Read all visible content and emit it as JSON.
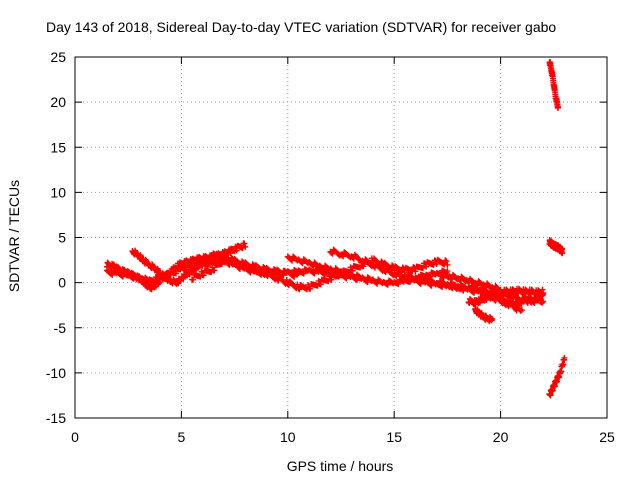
{
  "chart_data": {
    "type": "scatter",
    "title": "Day 143 of 2018, Sidereal Day-to-day VTEC variation (SDTVAR) for receiver gabo",
    "xlabel": "GPS time / hours",
    "ylabel": "SDTVAR / TECUs",
    "xlim": [
      0,
      25
    ],
    "ylim": [
      -15,
      25
    ],
    "xticks": [
      "0",
      "5",
      "10",
      "15",
      "20",
      "25"
    ],
    "yticks": [
      "-15",
      "-10",
      "-5",
      "0",
      "5",
      "10",
      "15",
      "20",
      "25"
    ],
    "grid": true,
    "marker": "+",
    "color": "#ff0000",
    "series": [
      {
        "x": [
          1.5,
          1.8,
          2.0,
          2.3,
          2.5,
          2.7,
          3.0,
          3.2,
          3.4,
          3.6,
          3.8,
          4.0,
          4.3,
          4.6,
          4.9,
          5.2,
          5.5,
          5.8,
          6.1,
          6.4,
          6.7,
          7.0,
          7.3,
          7.6,
          8.0
        ],
        "y": [
          2.0,
          1.8,
          1.5,
          1.2,
          1.0,
          0.8,
          0.5,
          0.2,
          -0.3,
          -0.5,
          -0.2,
          0.3,
          0.8,
          1.4,
          2.0,
          2.2,
          2.4,
          2.6,
          2.7,
          2.8,
          3.0,
          3.2,
          3.5,
          3.8,
          4.2
        ]
      },
      {
        "x": [
          1.5,
          2.0,
          2.5,
          3.0,
          3.5,
          4.0,
          4.5,
          5.0,
          5.5,
          6.0,
          6.5,
          7.0,
          7.5,
          8.0,
          8.5,
          9.0,
          9.5,
          10.0,
          10.5,
          11.0,
          11.5,
          12.0,
          12.5,
          13.0,
          13.5,
          14.0
        ],
        "y": [
          1.2,
          1.0,
          0.8,
          0.5,
          0.2,
          0.5,
          1.0,
          1.5,
          1.8,
          2.0,
          2.2,
          2.4,
          2.0,
          1.5,
          1.2,
          1.0,
          1.0,
          1.1,
          1.2,
          1.3,
          1.2,
          1.0,
          0.8,
          0.6,
          0.4,
          0.2
        ]
      },
      {
        "x": [
          2.7,
          3.0,
          3.2,
          3.5,
          3.8,
          4.0,
          4.3,
          4.5,
          4.8,
          5.0,
          5.3,
          5.6,
          5.9,
          6.2
        ],
        "y": [
          3.5,
          3.0,
          2.5,
          2.0,
          1.5,
          1.0,
          0.5,
          0.2,
          0.0,
          0.5,
          1.0,
          1.5,
          2.0,
          2.3
        ]
      },
      {
        "x": [
          5.5,
          6.0,
          6.5,
          7.0,
          7.5,
          8.0,
          8.5,
          9.0,
          9.5,
          10.0,
          10.5,
          11.0,
          11.5,
          12.0,
          12.5,
          13.0,
          13.5,
          14.0
        ],
        "y": [
          0.5,
          1.0,
          1.5,
          2.5,
          2.2,
          1.8,
          1.4,
          1.0,
          0.5,
          0.0,
          -0.5,
          -0.5,
          0.0,
          0.5,
          1.0,
          1.5,
          2.0,
          2.5
        ]
      },
      {
        "x": [
          6.5,
          7.0,
          7.5,
          8.0,
          8.5,
          9.0,
          9.5,
          10.0,
          10.5
        ],
        "y": [
          3.0,
          2.8,
          2.4,
          2.0,
          1.7,
          1.4,
          1.2,
          1.0,
          0.8
        ]
      },
      {
        "x": [
          10.0,
          10.5,
          11.0,
          11.5,
          12.0,
          12.5,
          13.0,
          13.5,
          14.0,
          14.5,
          15.0,
          15.5,
          16.0,
          16.5,
          17.0,
          17.5
        ],
        "y": [
          2.8,
          2.5,
          2.2,
          1.8,
          1.5,
          1.2,
          0.8,
          0.5,
          0.2,
          0.0,
          0.0,
          0.2,
          0.5,
          0.8,
          1.0,
          1.2
        ]
      },
      {
        "x": [
          12.0,
          12.5,
          13.0,
          13.5,
          14.0,
          14.5,
          15.0,
          15.5,
          16.0,
          16.5,
          17.0,
          17.5,
          18.0,
          18.5,
          19.0,
          19.5,
          20.0,
          20.5,
          21.0,
          21.5,
          22.0
        ],
        "y": [
          3.5,
          3.2,
          3.0,
          2.5,
          2.0,
          1.5,
          1.0,
          0.8,
          0.5,
          0.3,
          0.0,
          -0.2,
          -0.5,
          -0.5,
          -0.7,
          -1.0,
          -1.2,
          -1.5,
          -1.8,
          -2.0,
          -2.0
        ]
      },
      {
        "x": [
          14.0,
          14.5,
          15.0,
          15.5,
          16.0,
          16.5,
          17.0,
          17.5
        ],
        "y": [
          2.5,
          2.0,
          1.6,
          1.4,
          1.5,
          2.0,
          2.3,
          2.2
        ]
      },
      {
        "x": [
          15.5,
          16.0,
          16.5,
          17.0,
          17.5,
          18.0,
          18.5,
          19.0,
          19.5,
          20.0,
          20.5,
          21.0
        ],
        "y": [
          0.5,
          0.2,
          0.0,
          -0.2,
          -0.3,
          -0.5,
          -0.8,
          -1.0,
          -1.5,
          -2.0,
          -2.5,
          -3.2
        ]
      },
      {
        "x": [
          17.2,
          17.6,
          18.0,
          18.4,
          18.8,
          19.2,
          19.6,
          20.0
        ],
        "y": [
          0.8,
          0.7,
          0.5,
          0.3,
          0.0,
          -0.2,
          -0.5,
          -0.8
        ]
      },
      {
        "x": [
          18.5,
          18.8,
          19.0,
          19.3,
          19.6,
          19.9,
          20.2,
          20.5,
          20.8,
          21.1,
          21.4,
          21.7,
          22.0
        ],
        "y": [
          -2.0,
          -2.2,
          -2.0,
          -1.7,
          -1.5,
          -1.3,
          -1.0,
          -1.0,
          -0.9,
          -1.0,
          -1.0,
          -1.1,
          -1.0
        ]
      },
      {
        "x": [
          19.0,
          19.3,
          19.6,
          19.9,
          20.2,
          20.5,
          20.8,
          21.1,
          21.4,
          21.7,
          22.0
        ],
        "y": [
          -1.0,
          -1.2,
          -1.5,
          -1.8,
          -2.2,
          -2.5,
          -2.3,
          -2.0,
          -2.0,
          -1.8,
          -1.5
        ]
      },
      {
        "x": [
          18.8,
          19.0,
          19.2,
          19.4,
          19.6
        ],
        "y": [
          -3.0,
          -3.4,
          -3.8,
          -4.0,
          -4.1
        ]
      },
      {
        "x": [
          22.3,
          22.4,
          22.5,
          22.6,
          22.7
        ],
        "y": [
          24.5,
          23.5,
          22.0,
          20.5,
          19.5
        ]
      },
      {
        "x": [
          22.3,
          22.4,
          22.5,
          22.6,
          22.7,
          22.8,
          22.9
        ],
        "y": [
          4.5,
          4.3,
          4.1,
          4.0,
          3.9,
          3.7,
          3.5
        ]
      },
      {
        "x": [
          22.3,
          22.4,
          22.5,
          22.6,
          22.7,
          22.8,
          22.9,
          23.0
        ],
        "y": [
          -12.5,
          -12.0,
          -11.5,
          -11.0,
          -10.5,
          -10.0,
          -9.2,
          -8.5
        ]
      }
    ]
  }
}
